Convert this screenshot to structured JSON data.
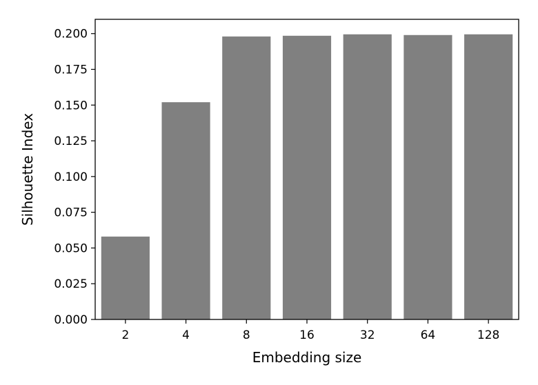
{
  "chart_data": {
    "type": "bar",
    "title": "",
    "xlabel": "Embedding size",
    "ylabel": "Silhouette Index",
    "categories": [
      "2",
      "4",
      "8",
      "16",
      "32",
      "64",
      "128"
    ],
    "values": [
      0.058,
      0.152,
      0.198,
      0.1985,
      0.1995,
      0.199,
      0.1995
    ],
    "ylim": [
      0,
      0.21
    ],
    "yticks": [
      "0.000",
      "0.025",
      "0.050",
      "0.075",
      "0.100",
      "0.125",
      "0.150",
      "0.175",
      "0.200"
    ],
    "grid": false,
    "legend": "none",
    "bar_color": "#808080",
    "axis_color": "#000000"
  }
}
